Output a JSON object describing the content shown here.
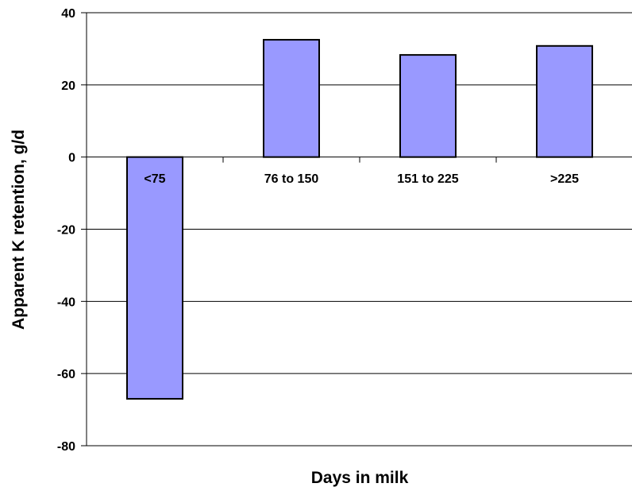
{
  "chart_data": {
    "type": "bar",
    "title": "",
    "xlabel": "Days in milk",
    "ylabel": "Apparent K retention, g/d",
    "categories": [
      "<75",
      "76 to 150",
      "151 to 225",
      ">225"
    ],
    "values": [
      -67,
      32.5,
      28.3,
      30.8
    ],
    "ylim": [
      -80,
      40
    ],
    "yticks": [
      "40",
      "20",
      "0",
      "-20",
      "-40",
      "-60",
      "-80"
    ],
    "grid": true,
    "bar_color": "#9999ff",
    "bar_edge_color": "#000000"
  }
}
